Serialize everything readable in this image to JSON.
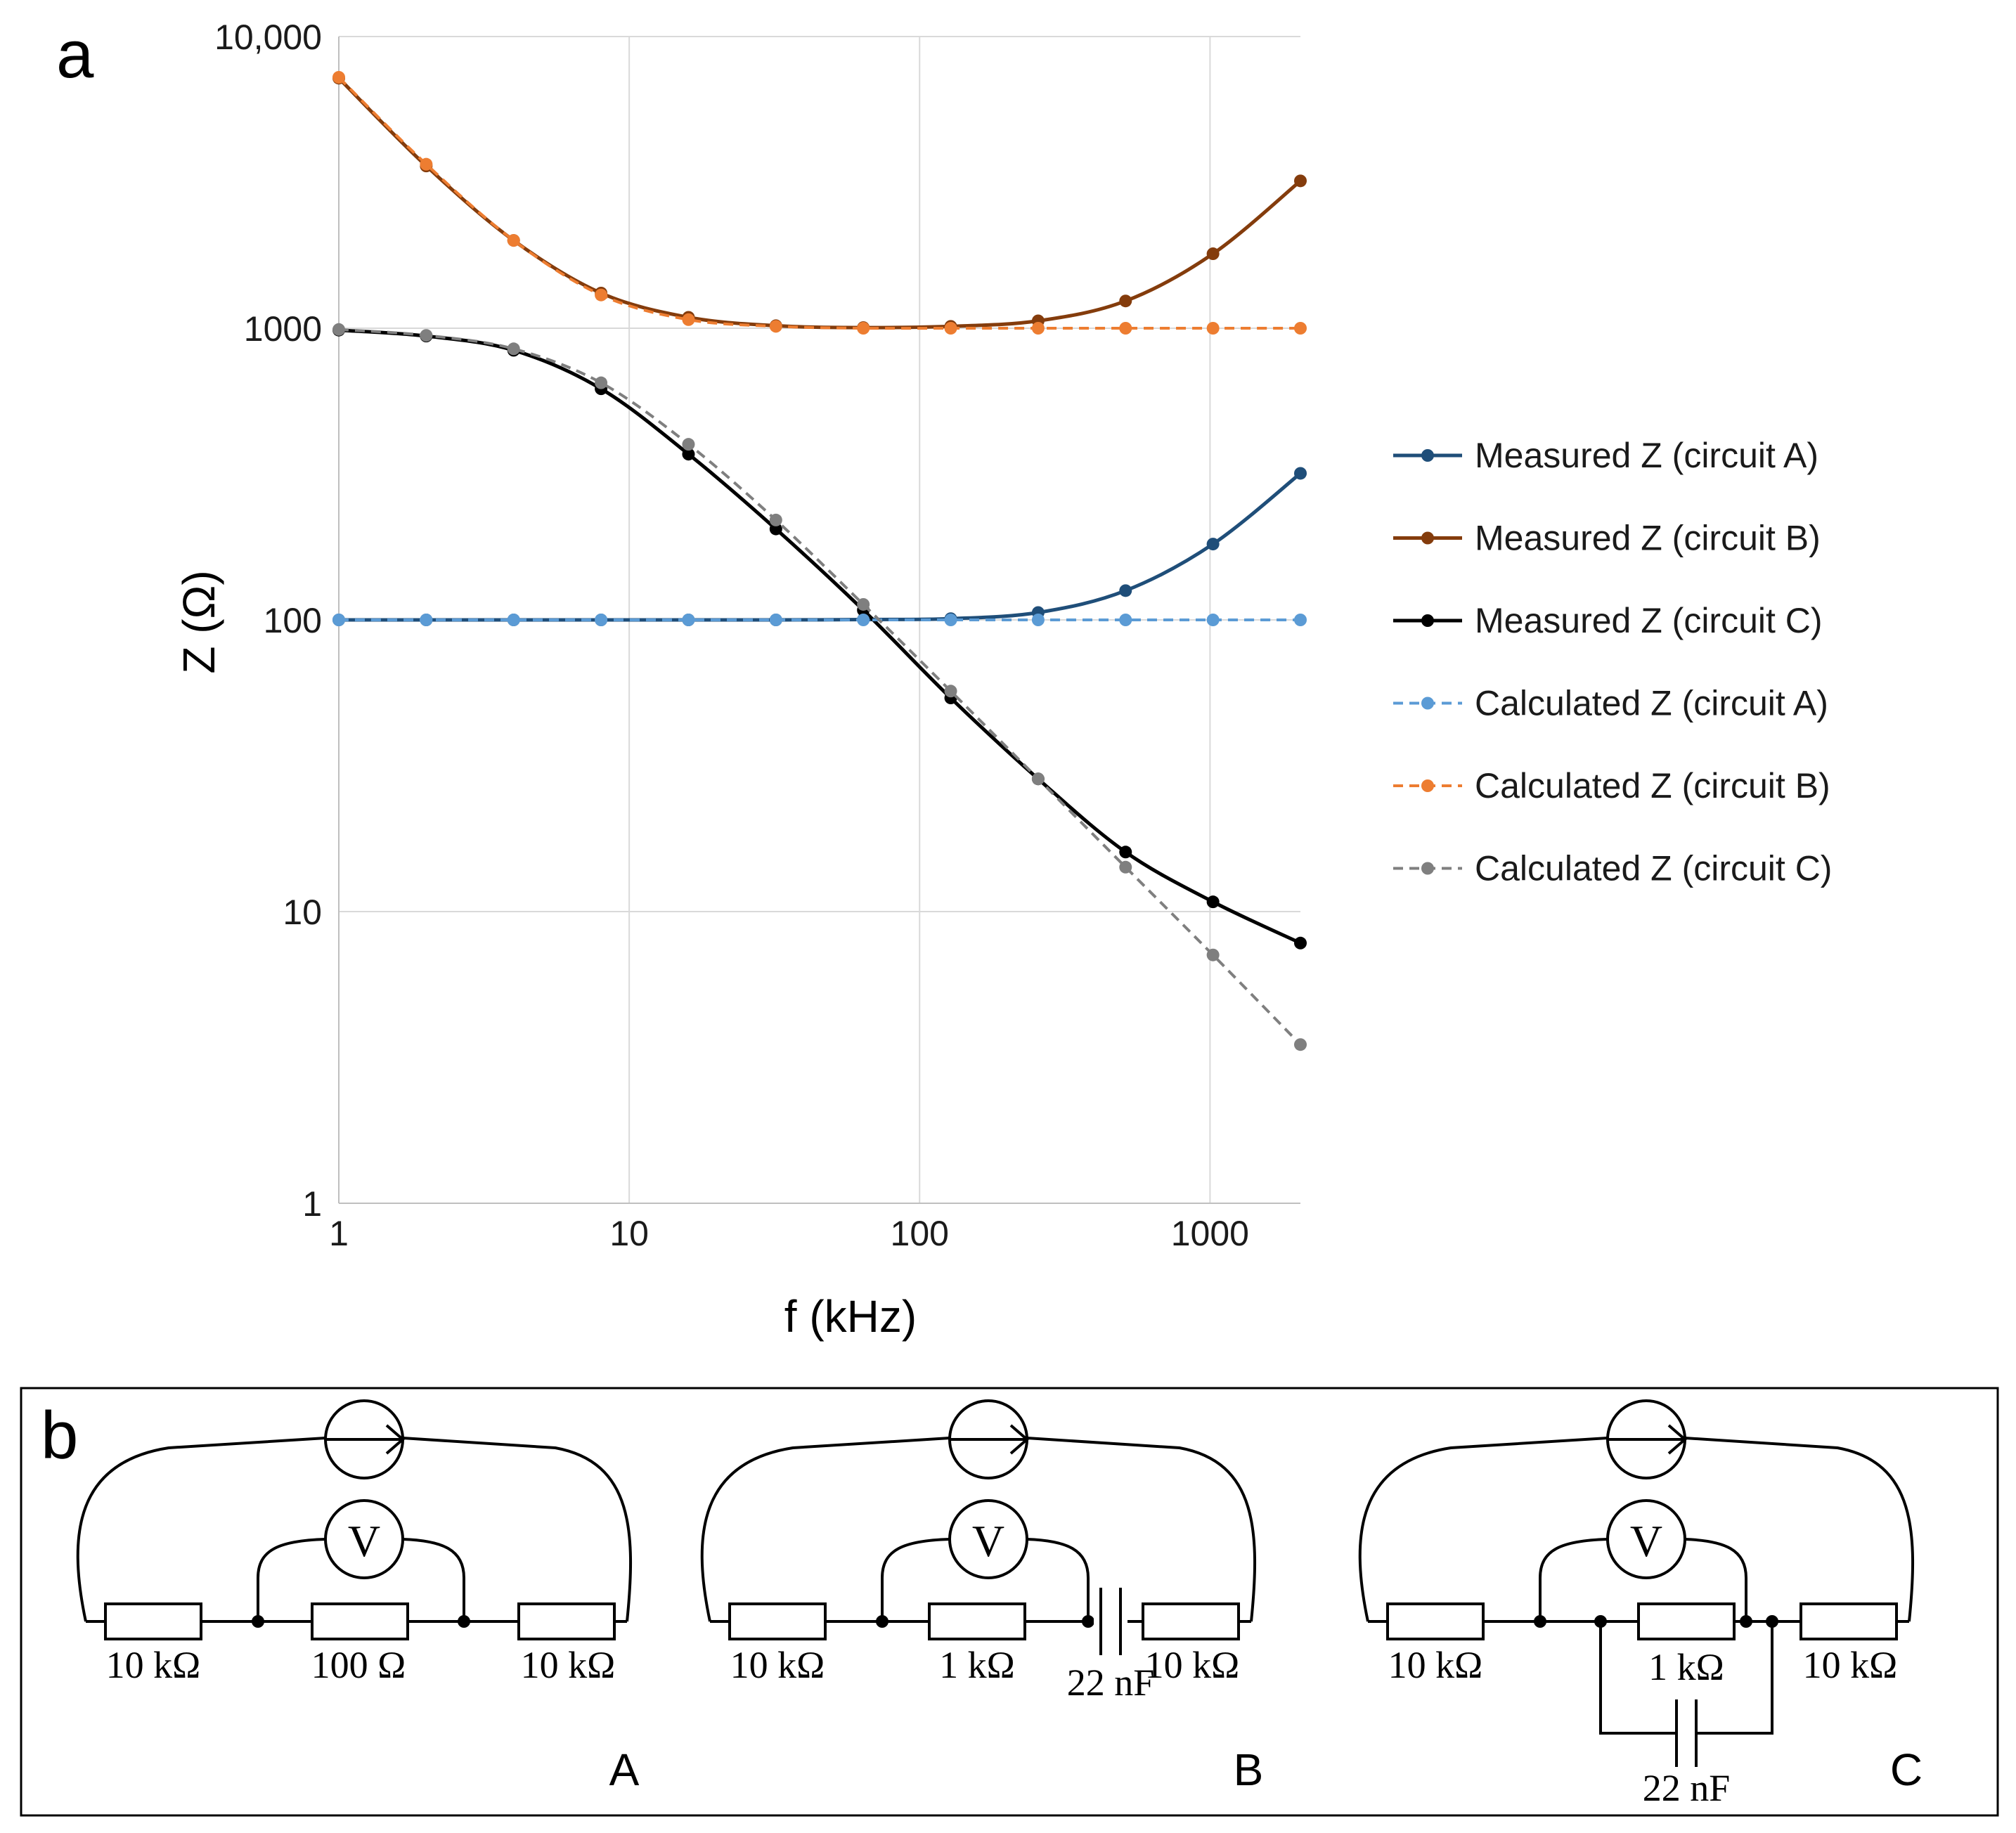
{
  "chart_data": {
    "type": "line",
    "panel_label": "a",
    "xscale": "log",
    "yscale": "log",
    "xlabel": "f (kHz)",
    "ylabel": "Z (Ω)",
    "xlim": [
      1,
      2048
    ],
    "ylim": [
      1,
      10000
    ],
    "xticks": [
      {
        "value": 1,
        "label": "1"
      },
      {
        "value": 10,
        "label": "10"
      },
      {
        "value": 100,
        "label": "100"
      },
      {
        "value": 1000,
        "label": "1000"
      }
    ],
    "yticks": [
      {
        "value": 1,
        "label": "1"
      },
      {
        "value": 10,
        "label": "10"
      },
      {
        "value": 100,
        "label": "100"
      },
      {
        "value": 1000,
        "label": "1000"
      },
      {
        "value": 10000,
        "label": "10,000"
      }
    ],
    "grid": true,
    "legend_position": "right",
    "x": [
      1,
      2,
      4,
      8,
      16,
      32,
      64,
      128,
      256,
      512,
      1024,
      2048
    ],
    "series": [
      {
        "name": "Measured Z (circuit A)",
        "color": "#1f4e79",
        "dashed": false,
        "values": [
          100,
          100,
          100,
          100,
          100,
          100,
          100.3,
          101,
          106,
          126,
          182,
          318
        ]
      },
      {
        "name": "Measured Z (circuit B)",
        "color": "#843c0c",
        "dashed": false,
        "values": [
          7200,
          3600,
          2000,
          1320,
          1090,
          1020,
          1005,
          1015,
          1060,
          1240,
          1800,
          3200
        ]
      },
      {
        "name": "Measured Z (circuit C)",
        "color": "#000000",
        "dashed": false,
        "values": [
          985,
          940,
          840,
          620,
          370,
          205,
          108,
          54,
          28.5,
          16,
          10.8,
          7.8
        ]
      },
      {
        "name": "Calculated Z (circuit A)",
        "color": "#5b9bd5",
        "dashed": true,
        "values": [
          100,
          100,
          100,
          100,
          100,
          100,
          100,
          100,
          100,
          100,
          100,
          100
        ]
      },
      {
        "name": "Calculated Z (circuit B)",
        "color": "#ed7d31",
        "dashed": true,
        "values": [
          7250,
          3650,
          2000,
          1300,
          1070,
          1015,
          1000,
          1000,
          1000,
          1000,
          1000,
          1000
        ]
      },
      {
        "name": "Calculated Z (circuit C)",
        "color": "#7f7f7f",
        "dashed": true,
        "values": [
          990,
          945,
          850,
          650,
          400,
          220,
          113,
          57,
          28.5,
          14.2,
          7.1,
          3.5
        ]
      }
    ]
  },
  "diagram": {
    "panel_label": "b",
    "circuits": [
      {
        "id": "A",
        "label": "A",
        "r_left": "10 kΩ",
        "r_mid": "100 Ω",
        "r_right": "10 kΩ",
        "cap": "",
        "voltmeter": "V"
      },
      {
        "id": "B",
        "label": "B",
        "r_left": "10 kΩ",
        "r_mid": "1 kΩ",
        "r_right": "10 kΩ",
        "cap": "22 nF",
        "voltmeter": "V"
      },
      {
        "id": "C",
        "label": "C",
        "r_left": "10 kΩ",
        "r_mid": "1 kΩ",
        "r_right": "10 kΩ",
        "cap": "22 nF",
        "voltmeter": "V"
      }
    ]
  }
}
